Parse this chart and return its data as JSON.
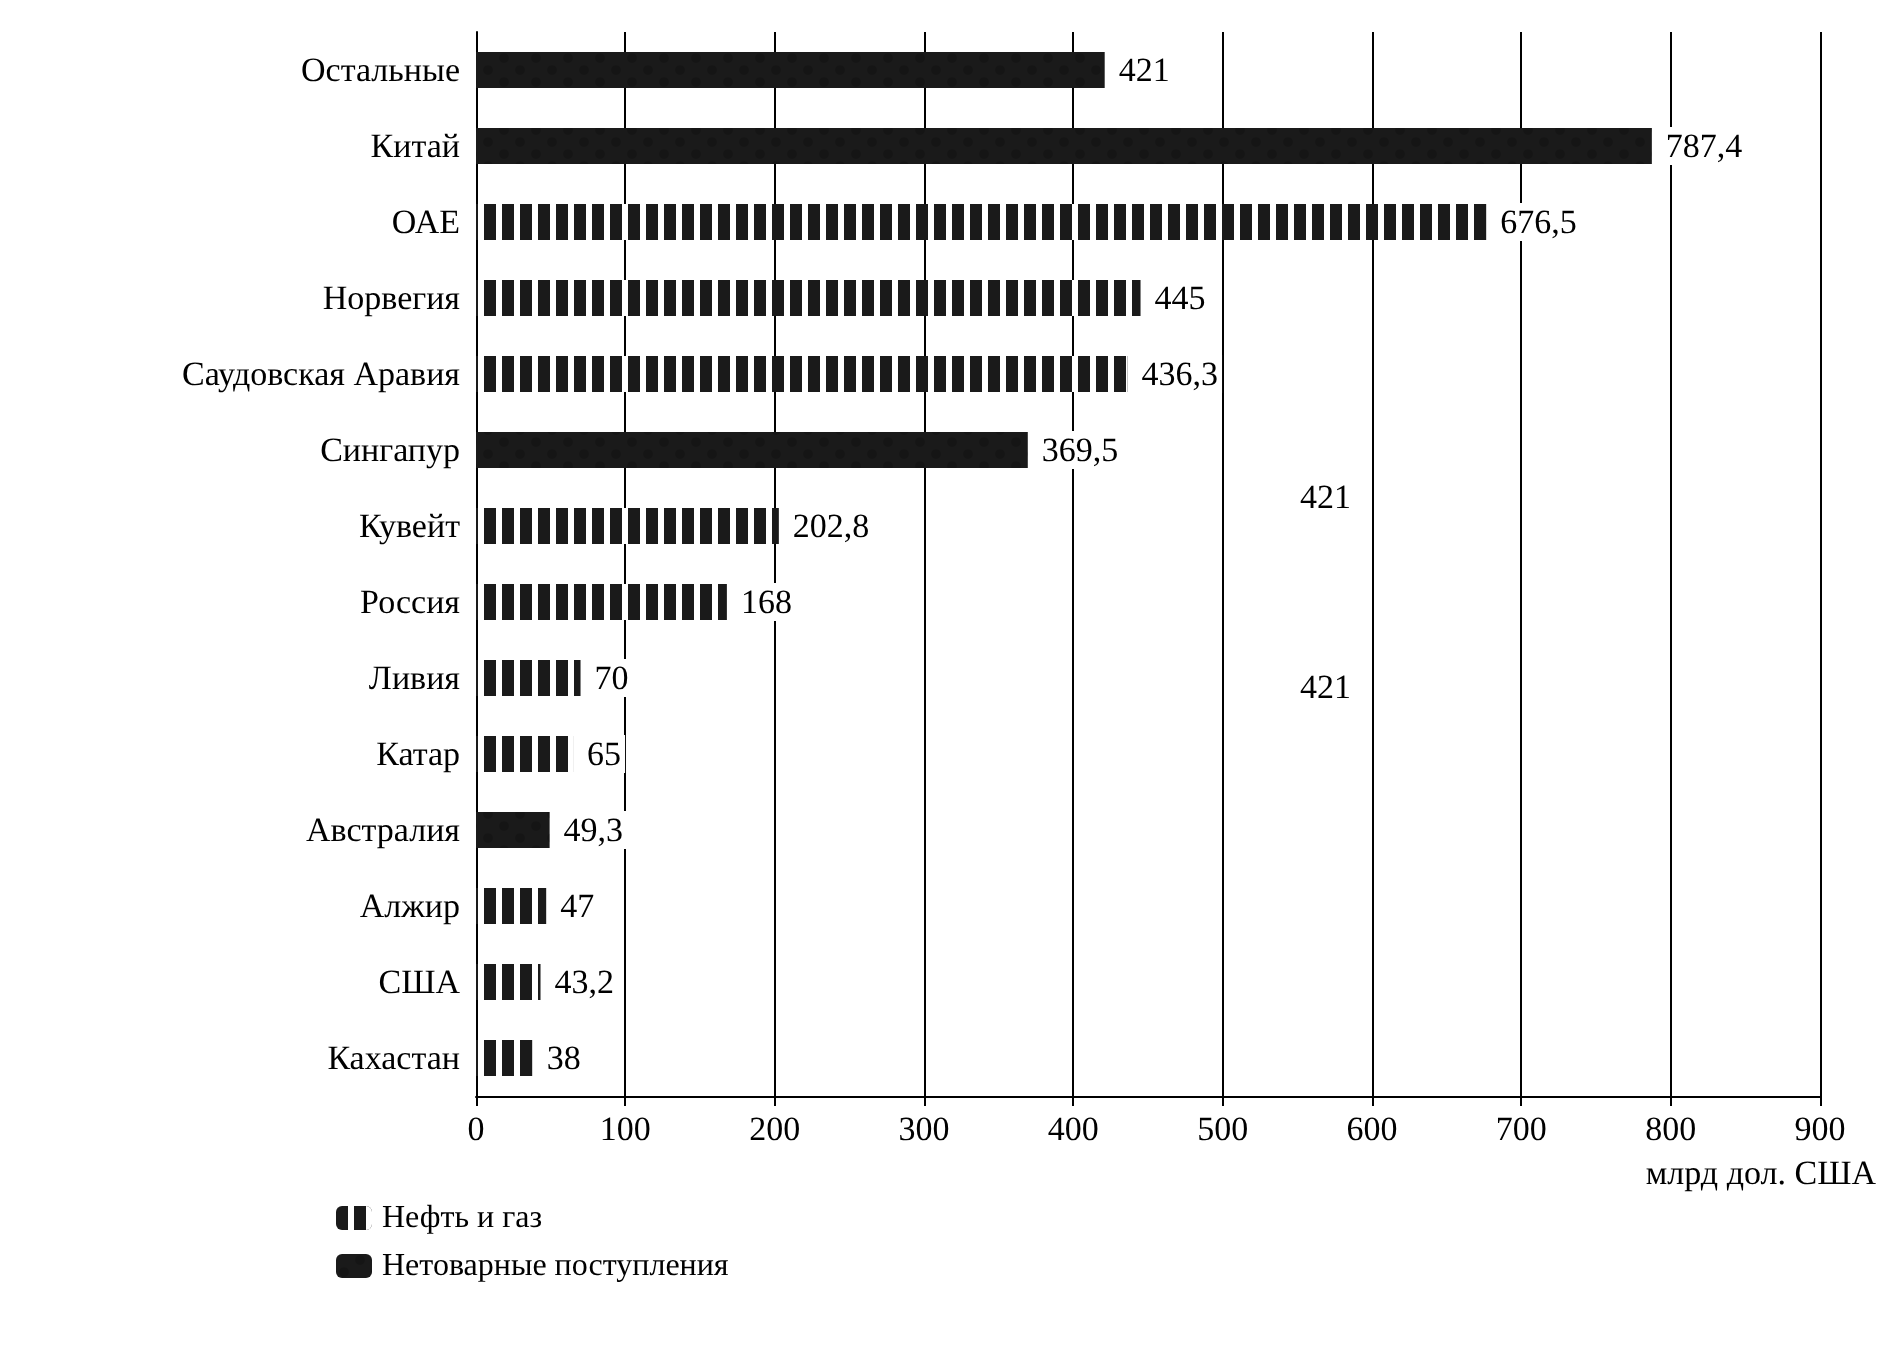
{
  "chart_data": {
    "type": "bar",
    "orientation": "horizontal",
    "xlabel": "млрд дол. США",
    "categories": [
      "Остальные",
      "Китай",
      "ОАЕ",
      "Норвегия",
      "Саудовская Аравия",
      "Сингапур",
      "Кувейт",
      "Россия",
      "Ливия",
      "Катар",
      "Австралия",
      "Алжир",
      "США",
      "Кахастан"
    ],
    "series": [
      {
        "name": "Нефть и газ",
        "color": "#1a1a1a",
        "values": [
          null,
          null,
          676.5,
          445,
          436.3,
          null,
          202.8,
          168,
          70,
          65,
          null,
          47,
          43.2,
          38
        ],
        "value_labels": [
          null,
          null,
          "676,5",
          "445",
          "436,3",
          null,
          "202,8",
          "168",
          "70",
          "65",
          null,
          "47",
          "43,2",
          "38"
        ]
      },
      {
        "name": "Нетоварные поступления",
        "color": "#1a1a1a",
        "values": [
          421,
          787.4,
          null,
          null,
          null,
          369.5,
          null,
          null,
          null,
          null,
          49.3,
          null,
          null,
          null
        ],
        "value_labels": [
          "421",
          "787,4",
          null,
          null,
          null,
          "369,5",
          null,
          null,
          null,
          null,
          "49,3",
          null,
          null,
          null
        ]
      }
    ],
    "xlim": [
      0,
      900
    ],
    "xticks": [
      0,
      100,
      200,
      300,
      400,
      500,
      600,
      700,
      800,
      900
    ],
    "grid": "x",
    "legend": "bottom left",
    "annotations": [
      "421",
      "421"
    ]
  }
}
